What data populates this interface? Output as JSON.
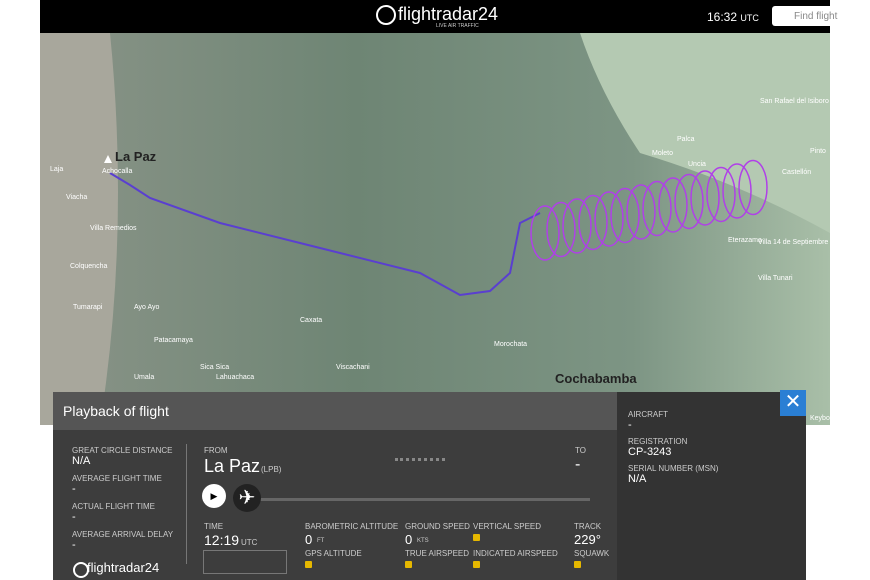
{
  "header": {
    "logo": "flightradar24",
    "tagline": "LIVE AIR TRAFFIC",
    "time": "16:32",
    "time_unit": "UTC",
    "search_placeholder": "Find flight"
  },
  "map": {
    "labels": [
      "La Paz",
      "Achocalla",
      "Laja",
      "Viacha",
      "Villa Remedios",
      "Colquencha",
      "Tumarapi",
      "Ayo Ayo",
      "Patacamaya",
      "Umala",
      "Sica Sica",
      "Lahuachaca",
      "Palca",
      "Moleto",
      "Uncia",
      "Castellón",
      "San Rafael del Isiboro",
      "Pinto",
      "Eterazama",
      "Villa 14 de Septiembre",
      "Villa Tunari",
      "Morochata",
      "Cochabamba",
      "Viscachani",
      "Caxata",
      "Keyboa"
    ]
  },
  "panel": {
    "title": "Playback of flight",
    "stats": [
      {
        "label": "GREAT CIRCLE DISTANCE",
        "value": "N/A"
      },
      {
        "label": "AVERAGE FLIGHT TIME",
        "value": "-"
      },
      {
        "label": "ACTUAL FLIGHT TIME",
        "value": "-"
      },
      {
        "label": "AVERAGE ARRIVAL DELAY",
        "value": "-"
      }
    ],
    "route": {
      "from_label": "FROM",
      "from": "La Paz",
      "from_code": "(LPB)",
      "to_label": "TO",
      "to": "-"
    },
    "time": {
      "label": "TIME",
      "value": "12:19",
      "unit": "UTC"
    },
    "metrics": [
      {
        "label": "BAROMETRIC ALTITUDE",
        "value": "0",
        "unit": "FT"
      },
      {
        "label": "GPS ALTITUDE"
      },
      {
        "label": "GROUND SPEED",
        "value": "0",
        "unit": "KTS"
      },
      {
        "label": "TRUE AIRSPEED"
      },
      {
        "label": "VERTICAL SPEED"
      },
      {
        "label": "INDICATED AIRSPEED"
      },
      {
        "label": "TRACK",
        "value": "229°"
      },
      {
        "label": "SQUAWK"
      }
    ],
    "aircraft": [
      {
        "label": "AIRCRAFT",
        "value": "-"
      },
      {
        "label": "REGISTRATION",
        "value": "CP-3243"
      },
      {
        "label": "SERIAL NUMBER (MSN)",
        "value": "N/A"
      }
    ],
    "footer_logo": "flightradar24"
  }
}
